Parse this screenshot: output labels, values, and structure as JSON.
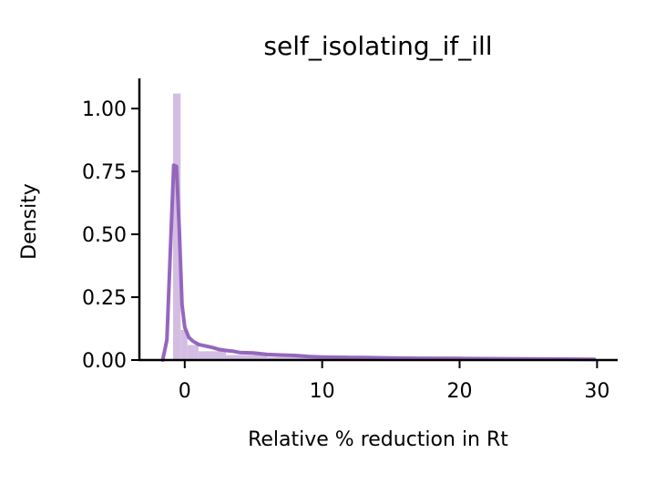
{
  "chart_data": {
    "type": "histogram",
    "title": "self_isolating_if_ill",
    "xlabel": "Relative % reduction in Rt",
    "ylabel": "Density",
    "xlim": [
      -3.3,
      31.5
    ],
    "ylim": [
      0,
      1.12
    ],
    "x_ticks": [
      {
        "value": 0,
        "label": "0"
      },
      {
        "value": 10,
        "label": "10"
      },
      {
        "value": 20,
        "label": "20"
      },
      {
        "value": 30,
        "label": "30"
      }
    ],
    "y_ticks": [
      {
        "value": 0,
        "label": "0.00"
      },
      {
        "value": 0.25,
        "label": "0.25"
      },
      {
        "value": 0.5,
        "label": "0.50"
      },
      {
        "value": 0.75,
        "label": "0.75"
      },
      {
        "value": 1.0,
        "label": "1.00"
      }
    ],
    "grid": false,
    "bar_color": "#d4bde3",
    "line_color": "#9467bd",
    "bars": [
      {
        "x0": -0.85,
        "x1": -0.3,
        "value": 1.06
      },
      {
        "x0": -0.3,
        "x1": 0.2,
        "value": 0.12
      },
      {
        "x0": 0.2,
        "x1": 1.0,
        "value": 0.06
      },
      {
        "x0": 1.0,
        "x1": 3.0,
        "value": 0.035
      },
      {
        "x0": 3.0,
        "x1": 6.0,
        "value": 0.02
      },
      {
        "x0": 6.0,
        "x1": 10.0,
        "value": 0.012
      },
      {
        "x0": 10.0,
        "x1": 15.0,
        "value": 0.008
      },
      {
        "x0": 15.0,
        "x1": 22.0,
        "value": 0.005
      },
      {
        "x0": 22.0,
        "x1": 29.8,
        "value": 0.003
      }
    ],
    "kde": {
      "x": [
        -1.6,
        -1.3,
        -1.0,
        -0.8,
        -0.6,
        -0.4,
        -0.2,
        0.0,
        0.3,
        0.6,
        1.0,
        1.5,
        2.0,
        2.5,
        3.0,
        3.5,
        4.0,
        5.0,
        6.0,
        7.0,
        8.0,
        9.0,
        10.0,
        11.0,
        12.0,
        13.0,
        14.0,
        15.0,
        17.0,
        20.0,
        23.0,
        26.0,
        29.8
      ],
      "y": [
        0.0,
        0.08,
        0.5,
        0.775,
        0.77,
        0.52,
        0.22,
        0.13,
        0.09,
        0.075,
        0.062,
        0.056,
        0.05,
        0.042,
        0.038,
        0.035,
        0.03,
        0.028,
        0.022,
        0.02,
        0.018,
        0.014,
        0.012,
        0.011,
        0.01,
        0.01,
        0.009,
        0.008,
        0.007,
        0.006,
        0.005,
        0.004,
        0.003
      ]
    }
  }
}
